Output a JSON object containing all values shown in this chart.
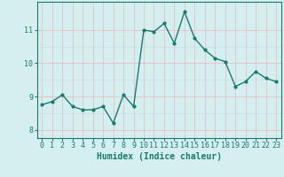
{
  "x": [
    0,
    1,
    2,
    3,
    4,
    5,
    6,
    7,
    8,
    9,
    10,
    11,
    12,
    13,
    14,
    15,
    16,
    17,
    18,
    19,
    20,
    21,
    22,
    23
  ],
  "y": [
    8.75,
    8.85,
    9.05,
    8.7,
    8.6,
    8.6,
    8.7,
    8.2,
    9.05,
    8.7,
    11.0,
    10.95,
    11.2,
    10.6,
    11.55,
    10.75,
    10.4,
    10.15,
    10.05,
    9.3,
    9.45,
    9.75,
    9.55,
    9.45
  ],
  "line_color": "#1a7a6e",
  "marker": ".",
  "marker_size": 4,
  "background_color": "#d5eef0",
  "grid_color": "#c0dde0",
  "grid_color2": "#e8b8b8",
  "xlabel": "Humidex (Indice chaleur)",
  "ylim": [
    7.75,
    11.85
  ],
  "xlim": [
    -0.5,
    23.5
  ],
  "yticks": [
    8,
    9,
    10,
    11
  ],
  "xticks": [
    0,
    1,
    2,
    3,
    4,
    5,
    6,
    7,
    8,
    9,
    10,
    11,
    12,
    13,
    14,
    15,
    16,
    17,
    18,
    19,
    20,
    21,
    22,
    23
  ],
  "label_fontsize": 7,
  "tick_fontsize": 6,
  "line_width": 1.0,
  "line_color2": "#1a7a6e",
  "border_color": "#888888"
}
